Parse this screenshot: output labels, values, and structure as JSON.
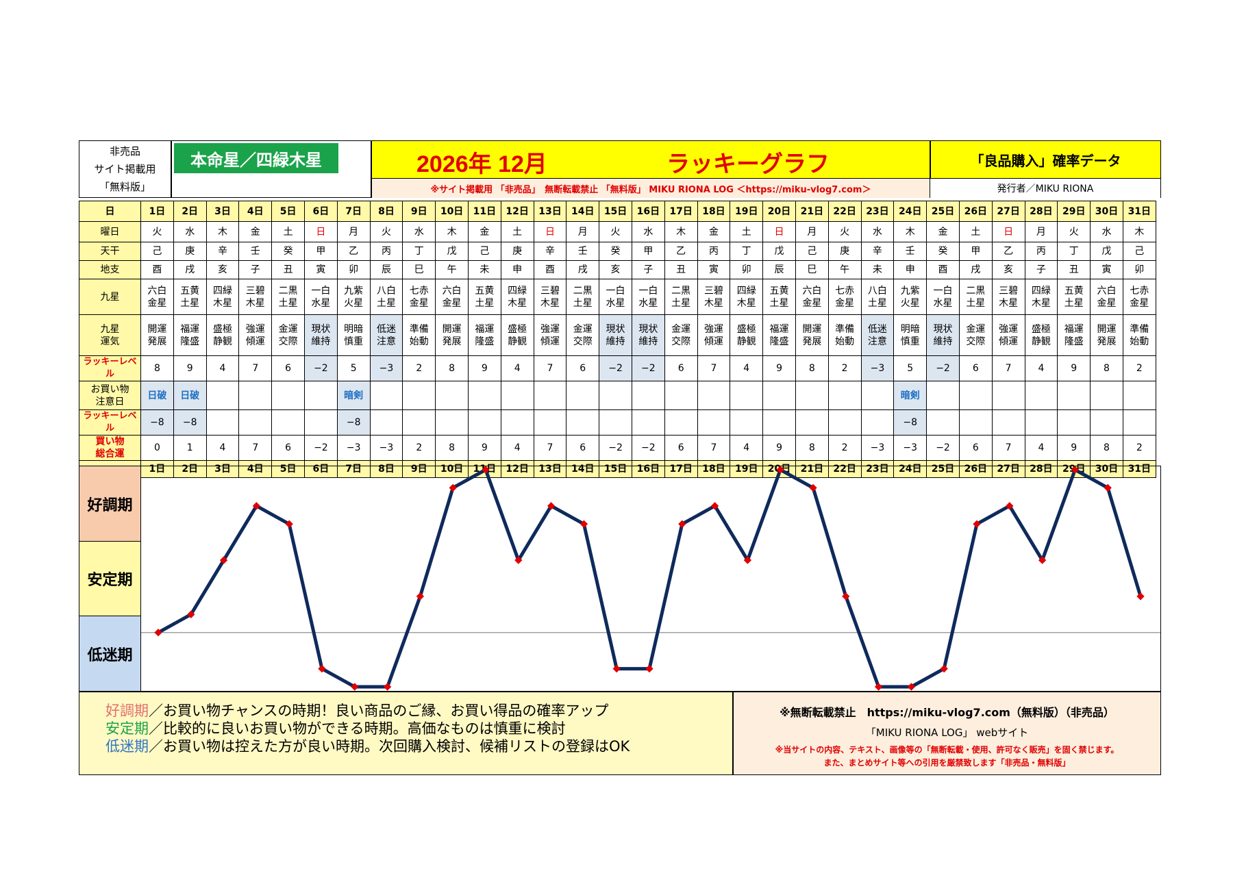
{
  "header": {
    "non_sale_lines": [
      "非売品",
      "サイト掲載用",
      "「無料版」"
    ],
    "honmei": "本命星／四緑木星",
    "title_left": "2026年 12月",
    "title_right": "ラッキーグラフ",
    "subtitle": "※サイト掲載用 「非売品」　無断転載禁止 「無料版」 MIKU RIONA LOG ＜https://miku-vlog7.com＞",
    "right_title": "「良品購入」確率データ",
    "publisher": "発行者／MIKU RIONA"
  },
  "row_labels": {
    "day": "日",
    "weekday": "曜日",
    "tenkan": "天干",
    "chishi": "地支",
    "kyusei": "九星",
    "kyusei_unki": "九星\n運気",
    "lucky_level": "ラッキーレベル",
    "caution": "お買い物\n注意日",
    "lucky_level2": "ラッキーレベル",
    "total": "買い物\n総合運"
  },
  "days": [
    "1日",
    "2日",
    "3日",
    "4日",
    "5日",
    "6日",
    "7日",
    "8日",
    "9日",
    "10日",
    "11日",
    "12日",
    "13日",
    "14日",
    "15日",
    "16日",
    "17日",
    "18日",
    "19日",
    "20日",
    "21日",
    "22日",
    "23日",
    "24日",
    "25日",
    "26日",
    "27日",
    "28日",
    "29日",
    "30日",
    "31日"
  ],
  "weekdays": [
    "火",
    "水",
    "木",
    "金",
    "土",
    "日",
    "月",
    "火",
    "水",
    "木",
    "金",
    "土",
    "日",
    "月",
    "火",
    "水",
    "木",
    "金",
    "土",
    "日",
    "月",
    "火",
    "水",
    "木",
    "金",
    "土",
    "日",
    "月",
    "火",
    "水",
    "木"
  ],
  "tenkan": [
    "己",
    "庚",
    "辛",
    "壬",
    "癸",
    "甲",
    "乙",
    "丙",
    "丁",
    "戊",
    "己",
    "庚",
    "辛",
    "壬",
    "癸",
    "甲",
    "乙",
    "丙",
    "丁",
    "戊",
    "己",
    "庚",
    "辛",
    "壬",
    "癸",
    "甲",
    "乙",
    "丙",
    "丁",
    "戊",
    "己"
  ],
  "chishi": [
    "酉",
    "戌",
    "亥",
    "子",
    "丑",
    "寅",
    "卯",
    "辰",
    "巳",
    "午",
    "未",
    "申",
    "酉",
    "戌",
    "亥",
    "子",
    "丑",
    "寅",
    "卯",
    "辰",
    "巳",
    "午",
    "未",
    "申",
    "酉",
    "戌",
    "亥",
    "子",
    "丑",
    "寅",
    "卯"
  ],
  "kyusei": [
    "六白\n金星",
    "五黄\n土星",
    "四緑\n木星",
    "三碧\n木星",
    "二黒\n土星",
    "一白\n水星",
    "九紫\n火星",
    "八白\n土星",
    "七赤\n金星",
    "六白\n金星",
    "五黄\n土星",
    "四緑\n木星",
    "三碧\n木星",
    "二黒\n土星",
    "一白\n水星",
    "一白\n水星",
    "二黒\n土星",
    "三碧\n木星",
    "四緑\n木星",
    "五黄\n土星",
    "六白\n金星",
    "七赤\n金星",
    "八白\n土星",
    "九紫\n火星",
    "一白\n水星",
    "二黒\n土星",
    "三碧\n木星",
    "四緑\n木星",
    "五黄\n土星",
    "六白\n金星",
    "七赤\n金星"
  ],
  "unki": [
    "開運\n発展",
    "福運\n隆盛",
    "盛極\n静観",
    "強運\n傾運",
    "金運\n交際",
    "現状\n維持",
    "明暗\n慎重",
    "低迷\n注意",
    "準備\n始動",
    "開運\n発展",
    "福運\n隆盛",
    "盛極\n静観",
    "強運\n傾運",
    "金運\n交際",
    "現状\n維持",
    "現状\n維持",
    "金運\n交際",
    "強運\n傾運",
    "盛極\n静観",
    "福運\n隆盛",
    "開運\n発展",
    "準備\n始動",
    "低迷\n注意",
    "明暗\n慎重",
    "現状\n維持",
    "金運\n交際",
    "強運\n傾運",
    "盛極\n静観",
    "福運\n隆盛",
    "開運\n発展",
    "準備\n始動"
  ],
  "lucky_level": [
    "8",
    "9",
    "4",
    "7",
    "6",
    "−2",
    "5",
    "−3",
    "2",
    "8",
    "9",
    "4",
    "7",
    "6",
    "−2",
    "−2",
    "6",
    "7",
    "4",
    "9",
    "8",
    "2",
    "−3",
    "5",
    "−2",
    "6",
    "7",
    "4",
    "9",
    "8",
    "2"
  ],
  "caution": [
    "日破",
    "日破",
    "",
    "",
    "",
    "",
    "暗剣",
    "",
    "",
    "",
    "",
    "",
    "",
    "",
    "",
    "",
    "",
    "",
    "",
    "",
    "",
    "",
    "",
    "暗剣",
    "",
    "",
    "",
    "",
    "",
    "",
    ""
  ],
  "caution_level": [
    "−8",
    "−8",
    "",
    "",
    "",
    "",
    "−8",
    "",
    "",
    "",
    "",
    "",
    "",
    "",
    "",
    "",
    "",
    "",
    "",
    "",
    "",
    "",
    "",
    "−8",
    "",
    "",
    "",
    "",
    "",
    "",
    ""
  ],
  "total": [
    "0",
    "1",
    "4",
    "7",
    "6",
    "−2",
    "−3",
    "−3",
    "2",
    "8",
    "9",
    "4",
    "7",
    "6",
    "−2",
    "−2",
    "6",
    "7",
    "4",
    "9",
    "8",
    "2",
    "−3",
    "−3",
    "−2",
    "6",
    "7",
    "4",
    "9",
    "8",
    "2"
  ],
  "zones": [
    "好調期",
    "安定期",
    "低迷期"
  ],
  "colors": {
    "zone_good": "#f8cbad",
    "zone_stable": "#fff9a8",
    "zone_low": "#c5d9f1",
    "line": "#0f2a5c",
    "marker": "#e00000"
  },
  "chart_data": {
    "type": "line",
    "categories": [
      "1日",
      "2日",
      "3日",
      "4日",
      "5日",
      "6日",
      "7日",
      "8日",
      "9日",
      "10日",
      "11日",
      "12日",
      "13日",
      "14日",
      "15日",
      "16日",
      "17日",
      "18日",
      "19日",
      "20日",
      "21日",
      "22日",
      "23日",
      "24日",
      "25日",
      "26日",
      "27日",
      "28日",
      "29日",
      "30日",
      "31日"
    ],
    "series": [
      {
        "values": [
          0,
          1,
          4,
          7,
          6,
          -2,
          -3,
          -3,
          2,
          8,
          9,
          4,
          7,
          6,
          -2,
          -2,
          6,
          7,
          4,
          9,
          8,
          2,
          -3,
          -3,
          -2,
          6,
          7,
          4,
          9,
          8,
          2
        ]
      }
    ],
    "ylim": [
      -3,
      9
    ],
    "bands": [
      "好調期",
      "安定期",
      "低迷期"
    ],
    "baseline": 0
  },
  "footer": {
    "good_label": "好調期",
    "good_text": "／お買い物チャンスの時期！良い商品のご縁、お買い得品の確率アップ",
    "stable_label": "安定期",
    "stable_text": "／比較的に良いお買い物ができる時期。高価なものは慎重に検討",
    "low_label": "低迷期",
    "low_text": "／お買い物は控えた方が良い時期。次回購入検討、候補リストの登録はOK",
    "notice_line1": "※無断転載禁止　https://miku-vlog7.com（無料版）（非売品）",
    "notice_line2": "「MIKU RIONA LOG」 webサイト",
    "notice_line3": "※当サイトの内容、テキスト、画像等の「無断転載・使用、許可なく販売」を固く禁じます。",
    "notice_line4": "また、まとめサイト等への引用を厳禁致します「非売品・無料版」"
  }
}
